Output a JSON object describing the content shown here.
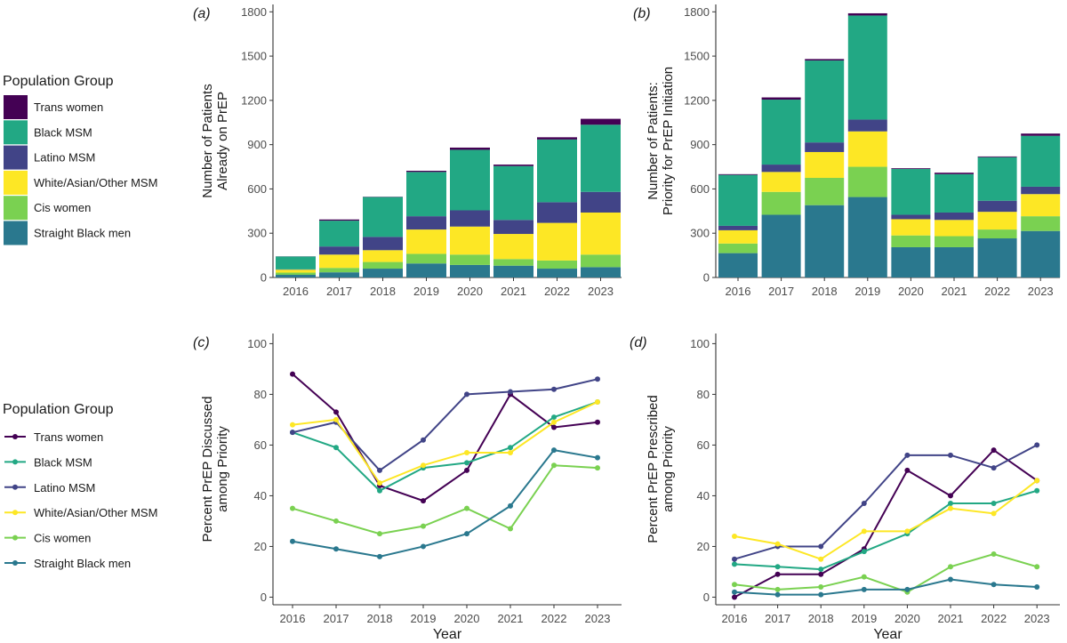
{
  "legend": {
    "title": "Population Group",
    "groups": [
      {
        "name": "Trans women",
        "color": "#440154"
      },
      {
        "name": "Black MSM",
        "color": "#22a884"
      },
      {
        "name": "Latino MSM",
        "color": "#414487"
      },
      {
        "name": "White/Asian/Other MSM",
        "color": "#fde725"
      },
      {
        "name": "Cis women",
        "color": "#7ad151"
      },
      {
        "name": "Straight Black men",
        "color": "#2a788e"
      }
    ]
  },
  "chart_data": [
    {
      "panel": "a",
      "tag": "(a)",
      "type": "bar",
      "stacked": true,
      "ylabel": [
        "Number of Patients",
        "Already on PrEP"
      ],
      "xlabel": "",
      "ylim": [
        0,
        1850
      ],
      "yticks": [
        0,
        300,
        600,
        900,
        1200,
        1500,
        1800
      ],
      "categories": [
        "2016",
        "2017",
        "2018",
        "2019",
        "2020",
        "2021",
        "2022",
        "2023"
      ],
      "series": [
        {
          "name": "Straight Black men",
          "values": [
            18,
            35,
            60,
            95,
            85,
            80,
            60,
            70
          ]
        },
        {
          "name": "Cis women",
          "values": [
            15,
            30,
            45,
            65,
            70,
            45,
            55,
            85
          ]
        },
        {
          "name": "White/Asian/Other MSM",
          "values": [
            20,
            90,
            80,
            165,
            190,
            170,
            255,
            285
          ]
        },
        {
          "name": "Latino MSM",
          "values": [
            2,
            55,
            90,
            90,
            110,
            95,
            140,
            140
          ]
        },
        {
          "name": "Black MSM",
          "values": [
            87,
            175,
            270,
            300,
            410,
            365,
            425,
            455
          ]
        },
        {
          "name": "Trans women",
          "values": [
            1,
            8,
            2,
            8,
            15,
            10,
            15,
            40
          ]
        }
      ]
    },
    {
      "panel": "b",
      "tag": "(b)",
      "type": "bar",
      "stacked": true,
      "ylabel": [
        "Number of Patients:",
        "Priority for PrEP Initiation"
      ],
      "xlabel": "",
      "ylim": [
        0,
        1850
      ],
      "yticks": [
        0,
        300,
        600,
        900,
        1200,
        1500,
        1800
      ],
      "categories": [
        "2016",
        "2017",
        "2018",
        "2019",
        "2020",
        "2021",
        "2022",
        "2023"
      ],
      "series": [
        {
          "name": "Straight Black men",
          "values": [
            165,
            425,
            490,
            545,
            205,
            205,
            265,
            315
          ]
        },
        {
          "name": "Cis women",
          "values": [
            65,
            155,
            185,
            205,
            80,
            75,
            60,
            100
          ]
        },
        {
          "name": "White/Asian/Other MSM",
          "values": [
            90,
            135,
            175,
            240,
            110,
            110,
            120,
            150
          ]
        },
        {
          "name": "Latino MSM",
          "values": [
            30,
            50,
            65,
            80,
            30,
            50,
            75,
            50
          ]
        },
        {
          "name": "Black MSM",
          "values": [
            345,
            440,
            555,
            705,
            310,
            260,
            295,
            345
          ]
        },
        {
          "name": "Trans women",
          "values": [
            5,
            15,
            10,
            15,
            5,
            10,
            5,
            15
          ]
        }
      ]
    },
    {
      "panel": "c",
      "tag": "(c)",
      "type": "line",
      "ylabel": [
        "Percent PrEP Discussed",
        "among Priority"
      ],
      "xlabel": "Year",
      "ylim": [
        -3,
        104
      ],
      "yticks": [
        0,
        20,
        40,
        60,
        80,
        100
      ],
      "categories": [
        "2016",
        "2017",
        "2018",
        "2019",
        "2020",
        "2021",
        "2022",
        "2023"
      ],
      "series": [
        {
          "name": "Trans women",
          "values": [
            88,
            73,
            44,
            38,
            50,
            80,
            67,
            69
          ]
        },
        {
          "name": "Black MSM",
          "values": [
            65,
            59,
            42,
            51,
            53,
            59,
            71,
            77
          ]
        },
        {
          "name": "Latino MSM",
          "values": [
            65,
            69,
            50,
            62,
            80,
            81,
            82,
            86
          ]
        },
        {
          "name": "White/Asian/Other MSM",
          "values": [
            68,
            70,
            45,
            52,
            57,
            57,
            69,
            77
          ]
        },
        {
          "name": "Cis women",
          "values": [
            35,
            30,
            25,
            28,
            35,
            27,
            52,
            51
          ]
        },
        {
          "name": "Straight Black men",
          "values": [
            22,
            19,
            16,
            20,
            25,
            36,
            58,
            55
          ]
        }
      ]
    },
    {
      "panel": "d",
      "tag": "(d)",
      "type": "line",
      "ylabel": [
        "Percent PrEP Prescribed",
        "among Priority"
      ],
      "xlabel": "Year",
      "ylim": [
        -3,
        104
      ],
      "yticks": [
        0,
        20,
        40,
        60,
        80,
        100
      ],
      "categories": [
        "2016",
        "2017",
        "2018",
        "2019",
        "2020",
        "2021",
        "2022",
        "2023"
      ],
      "series": [
        {
          "name": "Trans women",
          "values": [
            0,
            9,
            9,
            19,
            50,
            40,
            58,
            46
          ]
        },
        {
          "name": "Black MSM",
          "values": [
            13,
            12,
            11,
            18,
            25,
            37,
            37,
            42
          ]
        },
        {
          "name": "Latino MSM",
          "values": [
            15,
            20,
            20,
            37,
            56,
            56,
            51,
            60
          ]
        },
        {
          "name": "White/Asian/Other MSM",
          "values": [
            24,
            21,
            15,
            26,
            26,
            35,
            33,
            46
          ]
        },
        {
          "name": "Cis women",
          "values": [
            5,
            3,
            4,
            8,
            2,
            12,
            17,
            12
          ]
        },
        {
          "name": "Straight Black men",
          "values": [
            2,
            1,
            1,
            3,
            3,
            7,
            5,
            4
          ]
        }
      ]
    }
  ]
}
